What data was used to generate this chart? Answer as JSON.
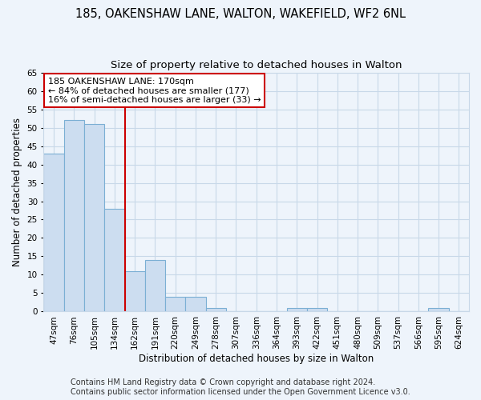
{
  "title1": "185, OAKENSHAW LANE, WALTON, WAKEFIELD, WF2 6NL",
  "title2": "Size of property relative to detached houses in Walton",
  "xlabel": "Distribution of detached houses by size in Walton",
  "ylabel": "Number of detached properties",
  "categories": [
    "47sqm",
    "76sqm",
    "105sqm",
    "134sqm",
    "162sqm",
    "191sqm",
    "220sqm",
    "249sqm",
    "278sqm",
    "307sqm",
    "336sqm",
    "364sqm",
    "393sqm",
    "422sqm",
    "451sqm",
    "480sqm",
    "509sqm",
    "537sqm",
    "566sqm",
    "595sqm",
    "624sqm"
  ],
  "values": [
    43,
    52,
    51,
    28,
    11,
    14,
    4,
    4,
    1,
    0,
    0,
    0,
    1,
    1,
    0,
    0,
    0,
    0,
    0,
    1,
    0
  ],
  "bar_color": "#ccddf0",
  "bar_edge_color": "#7bafd4",
  "grid_color": "#c8d8e8",
  "background_color": "#eef4fb",
  "annotation_line1": "185 OAKENSHAW LANE: 170sqm",
  "annotation_line2": "← 84% of detached houses are smaller (177)",
  "annotation_line3": "16% of semi-detached houses are larger (33) →",
  "annotation_box_color": "#ffffff",
  "annotation_box_edge_color": "#cc0000",
  "vline_color": "#cc0000",
  "ylim": [
    0,
    65
  ],
  "yticks": [
    0,
    5,
    10,
    15,
    20,
    25,
    30,
    35,
    40,
    45,
    50,
    55,
    60,
    65
  ],
  "footer1": "Contains HM Land Registry data © Crown copyright and database right 2024.",
  "footer2": "Contains public sector information licensed under the Open Government Licence v3.0.",
  "title1_fontsize": 10.5,
  "title2_fontsize": 9.5,
  "xlabel_fontsize": 8.5,
  "ylabel_fontsize": 8.5,
  "tick_fontsize": 7.5,
  "annotation_fontsize": 8,
  "footer_fontsize": 7
}
